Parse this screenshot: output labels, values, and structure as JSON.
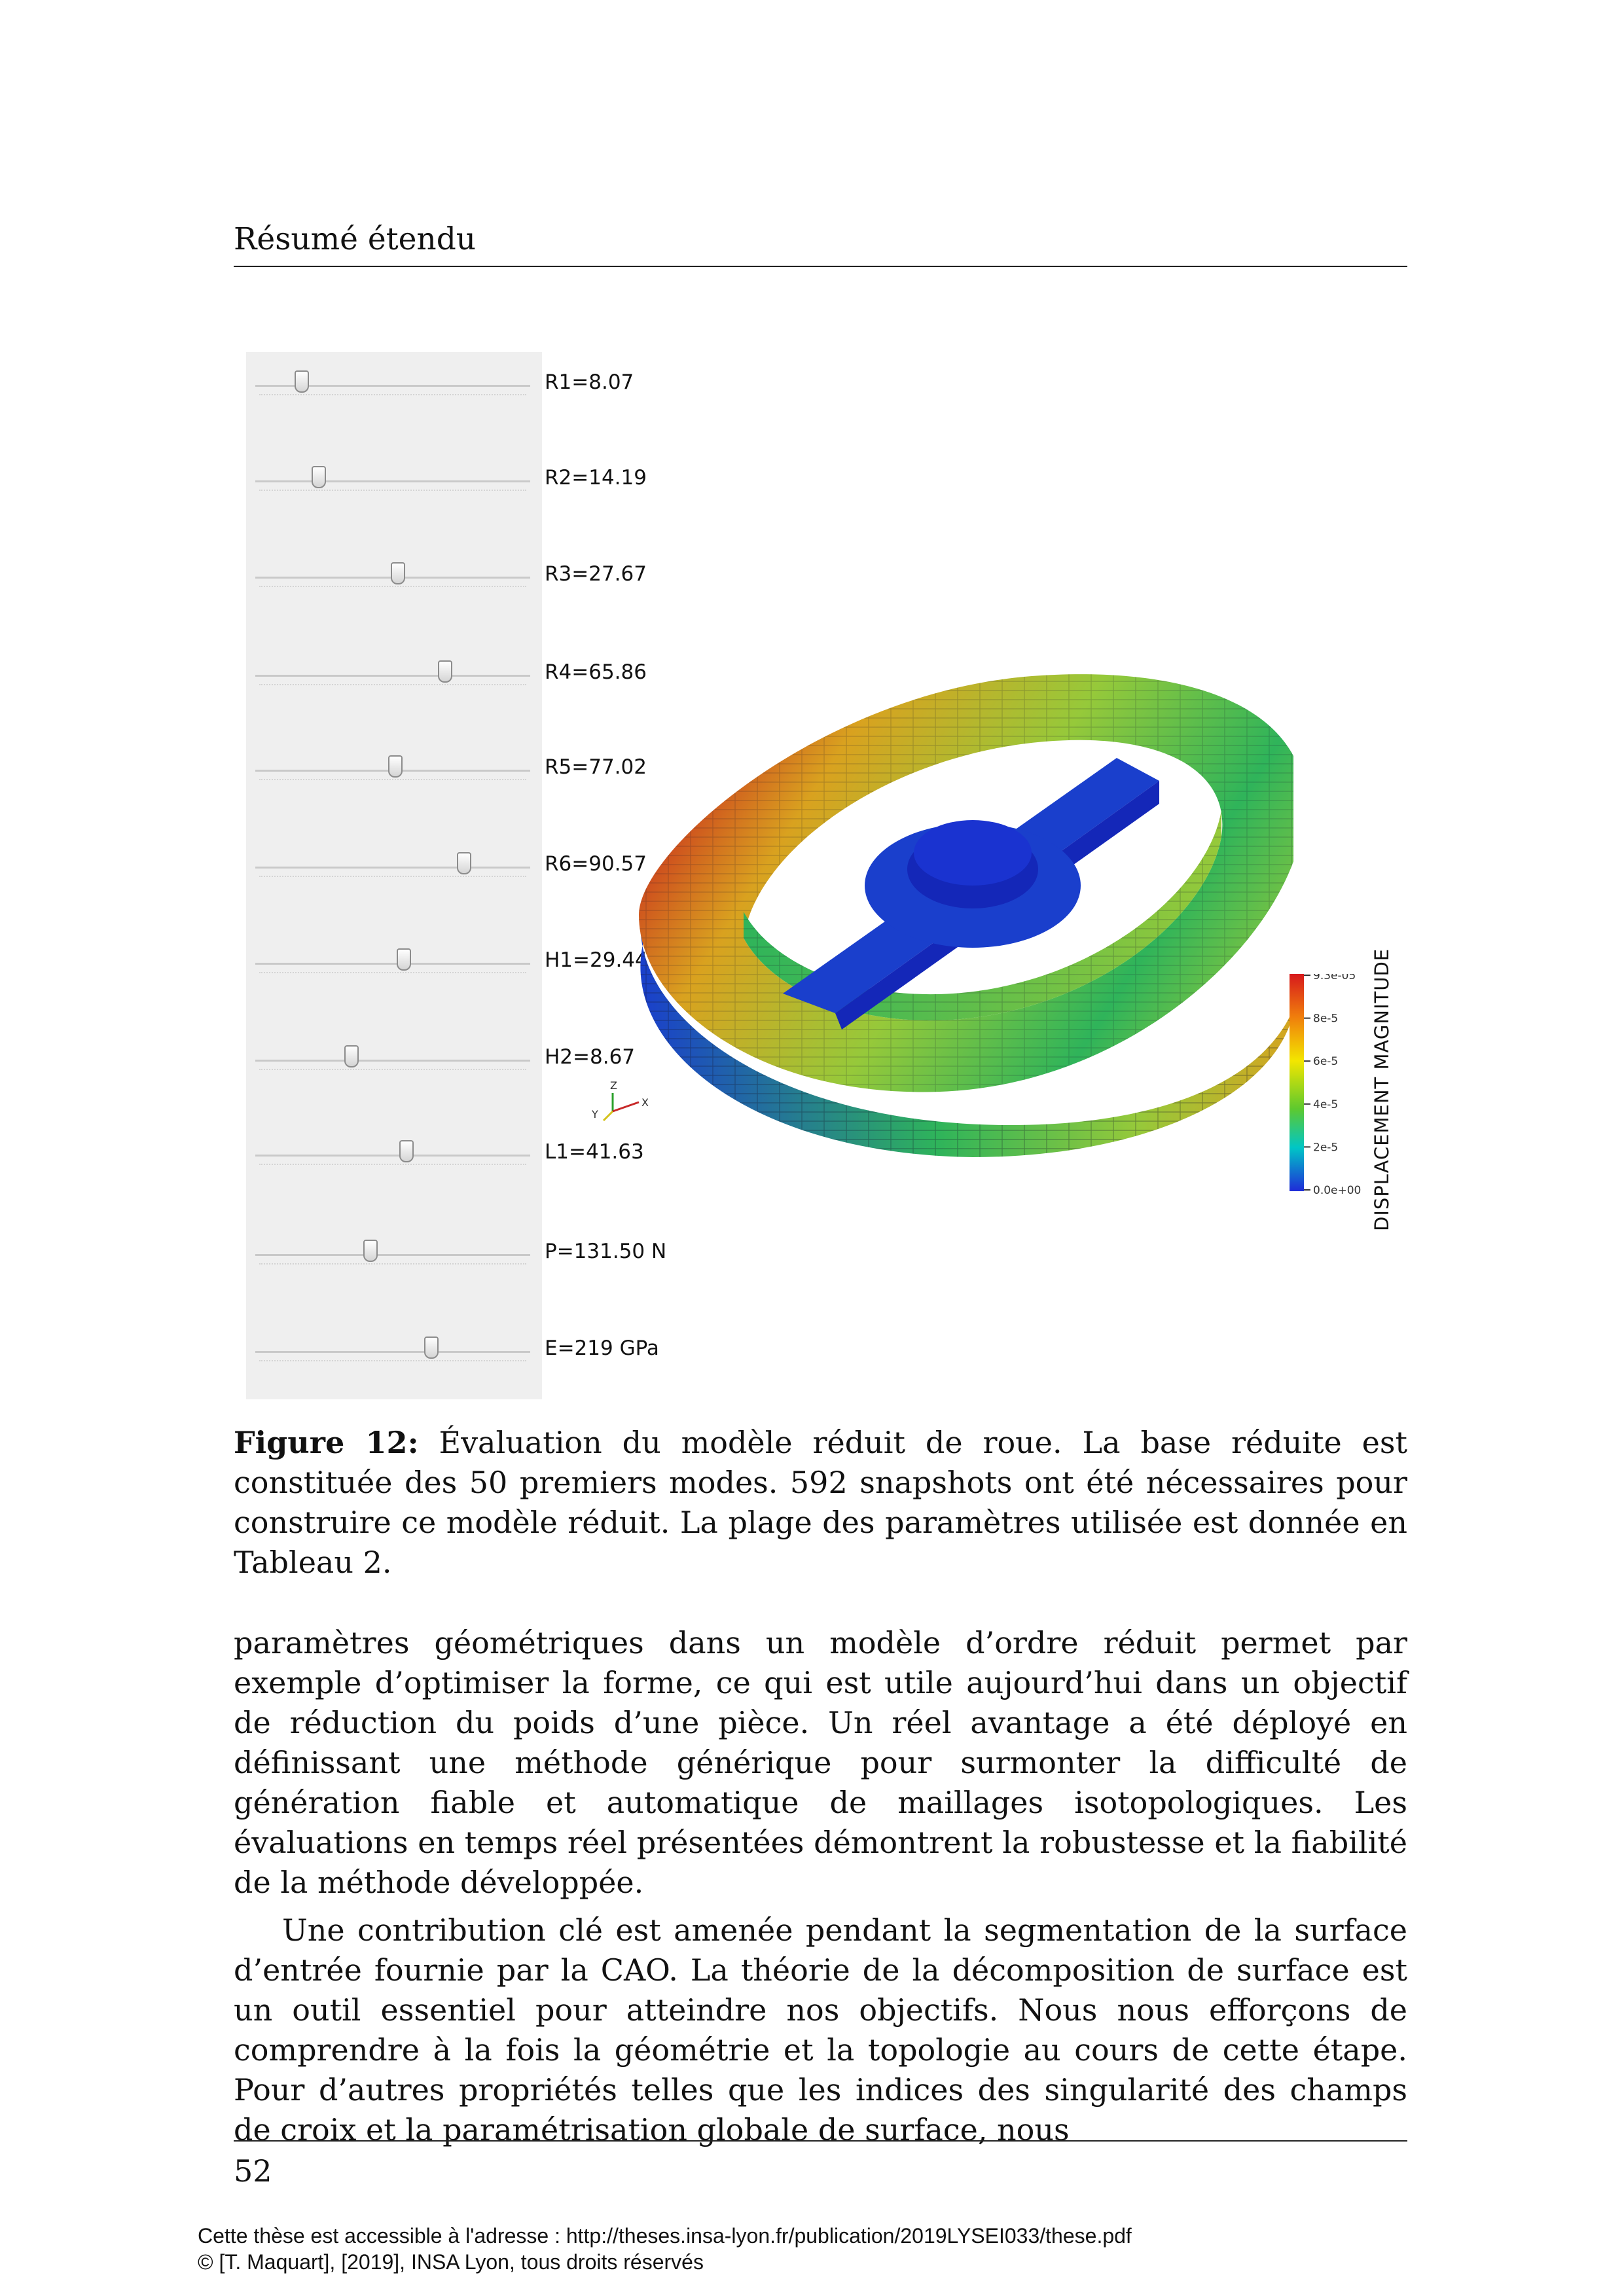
{
  "running_head": "Résumé étendu",
  "figure": {
    "sliders": [
      {
        "label": "R1=8.07",
        "value": 0.17
      },
      {
        "label": "R2=14.19",
        "value": 0.23
      },
      {
        "label": "R3=27.67",
        "value": 0.52
      },
      {
        "label": "R4=65.86",
        "value": 0.69
      },
      {
        "label": "R5=77.02",
        "value": 0.51
      },
      {
        "label": "R6=90.57",
        "value": 0.76
      },
      {
        "label": "H1=29.44",
        "value": 0.54
      },
      {
        "label": "H2=8.67",
        "value": 0.35
      },
      {
        "label": "L1=41.63",
        "value": 0.55
      },
      {
        "label": "P=131.50 N",
        "value": 0.42
      },
      {
        "label": "E=219 GPa",
        "value": 0.64
      }
    ],
    "axes_labels": {
      "z": "Z",
      "y": "Y",
      "x": "X"
    },
    "colorbar": {
      "title": "DISPLACEMENT MAGNITUDE",
      "ticks": [
        "9.3e-05",
        "8e-5",
        "6e-5",
        "4e-5",
        "2e-5",
        "0.0e+00"
      ],
      "colors": [
        "#d7191c",
        "#f07f0c",
        "#f3e600",
        "#5ec92e",
        "#00c6c6",
        "#1f2bd8"
      ]
    },
    "mesh_colors": {
      "hot": "#c8211e",
      "warm": "#d9a21f",
      "mid": "#96c93a",
      "cool": "#2fb45a",
      "cold": "#1a3fcc",
      "hub": "#1427b8"
    }
  },
  "caption": {
    "label": "Figure 12:",
    "text": "Évaluation du modèle réduit de roue. La base réduite est constituée des 50 premiers modes. 592 snapshots ont été nécessaires pour construire ce modèle réduit. La plage des paramètres utilisée est donnée en Tableau 2."
  },
  "body": {
    "paragraph1": "paramètres géométriques dans un modèle d’ordre réduit permet par exemple d’optimiser la forme, ce qui est utile aujourd’hui dans un objectif de réduction du poids d’une pièce. Un réel avantage a été déployé en définissant une méthode générique pour surmonter la difficulté de génération fiable et automatique de maillages isotopologiques. Les évaluations en temps réel présentées démontrent la robustesse et la fiabilité de la méthode développée.",
    "paragraph2": "Une contribution clé est amenée pendant la segmentation de la surface d’entrée fournie par la CAO. La théorie de la décomposition de surface est un outil essentiel pour atteindre nos objectifs. Nous nous efforçons de comprendre à la fois la géométrie et la topologie au cours de cette étape. Pour d’autres propriétés telles que les indices des singularité des champs de croix et la paramétrisation globale de surface, nous"
  },
  "page_number": "52",
  "footer": {
    "line1": "Cette thèse est accessible à l'adresse : http://theses.insa-lyon.fr/publication/2019LYSEI033/these.pdf",
    "line2": "© [T. Maquart], [2019], INSA Lyon, tous droits réservés"
  }
}
